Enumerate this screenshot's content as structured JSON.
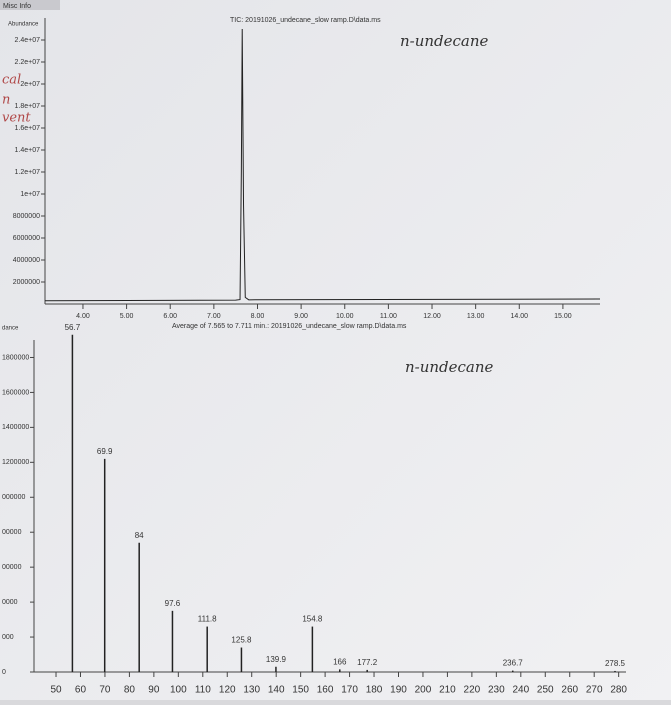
{
  "header_text": "Misc Info",
  "margin_notes": [
    "cal",
    "n",
    "vent"
  ],
  "chart_data": [
    {
      "type": "line",
      "title": "TIC: 20191026_undecane_slow ramp.D\\data.ms",
      "y_label": "Abundance",
      "annotation": "n-undecane",
      "color": "#222222",
      "x": [
        3.13,
        7.5,
        7.6,
        7.63,
        7.65,
        7.68,
        7.72,
        7.8,
        15.85
      ],
      "values": [
        300000,
        350000,
        400000,
        12000000,
        25000000,
        9000000,
        600000,
        380000,
        450000
      ],
      "xlim": [
        3.13,
        15.85
      ],
      "ylim": [
        0,
        26000000
      ],
      "xticks": [
        {
          "value": 4,
          "label": "4.00"
        },
        {
          "value": 5,
          "label": "5.00"
        },
        {
          "value": 6,
          "label": "6.00"
        },
        {
          "value": 7,
          "label": "7.00"
        },
        {
          "value": 8,
          "label": "8.00"
        },
        {
          "value": 9,
          "label": "9.00"
        },
        {
          "value": 10,
          "label": "10.00"
        },
        {
          "value": 11,
          "label": "11.00"
        },
        {
          "value": 12,
          "label": "12.00"
        },
        {
          "value": 13,
          "label": "13.00"
        },
        {
          "value": 14,
          "label": "14.00"
        },
        {
          "value": 15,
          "label": "15.00"
        }
      ],
      "yticks": [
        {
          "value": 24000000,
          "label": "2.4e+07"
        },
        {
          "value": 22000000,
          "label": "2.2e+07"
        },
        {
          "value": 20000000,
          "label": "2e+07"
        },
        {
          "value": 18000000,
          "label": "1.8e+07"
        },
        {
          "value": 16000000,
          "label": "1.6e+07"
        },
        {
          "value": 14000000,
          "label": "1.4e+07"
        },
        {
          "value": 12000000,
          "label": "1.2e+07"
        },
        {
          "value": 10000000,
          "label": "1e+07"
        },
        8000000,
        6000000,
        4000000,
        2000000
      ]
    },
    {
      "type": "bar",
      "title": "Average of 7.565 to 7.711 min.: 20191026_undecane_slow ramp.D\\data.ms",
      "y_label": "dance",
      "annotation": "n-undecane",
      "color": "#222222",
      "x": [
        56.7,
        69.9,
        84.0,
        97.6,
        111.8,
        125.8,
        139.9,
        154.8,
        166.0,
        177.2,
        236.7,
        278.5
      ],
      "values": [
        1930000,
        1220000,
        740000,
        350000,
        260000,
        140000,
        30000,
        260000,
        15000,
        12000,
        8000,
        6000
      ],
      "xlim": [
        41,
        283
      ],
      "ylim": [
        0,
        1900000
      ],
      "xticks": [
        50,
        60,
        70,
        80,
        90,
        100,
        110,
        120,
        130,
        140,
        150,
        160,
        170,
        180,
        190,
        200,
        210,
        220,
        230,
        240,
        250,
        260,
        270,
        280
      ],
      "yticks": [
        1800000,
        1600000,
        1400000,
        1200000,
        {
          "value": 1000000,
          "label": "000000"
        },
        {
          "value": 800000,
          "label": "00000"
        },
        {
          "value": 600000,
          "label": "00000"
        },
        {
          "value": 400000,
          "label": "0000"
        },
        {
          "value": 200000,
          "label": "000"
        },
        {
          "value": 0,
          "label": "0"
        }
      ]
    }
  ]
}
